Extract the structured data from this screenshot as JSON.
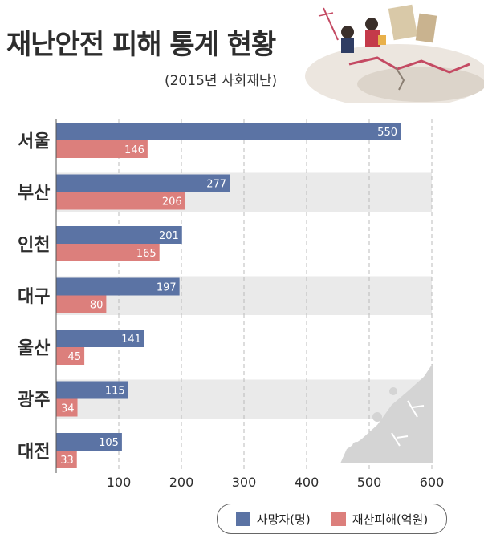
{
  "chart_data": {
    "type": "bar",
    "orientation": "horizontal",
    "title": "재난안전 피해 통계 현황",
    "subtitle": "(2015년 사회재난)",
    "categories": [
      "서울",
      "부산",
      "인천",
      "대구",
      "울산",
      "광주",
      "대전"
    ],
    "series": [
      {
        "name": "사망자(명)",
        "values": [
          550,
          277,
          201,
          197,
          141,
          115,
          105
        ],
        "color": "#5b73a4"
      },
      {
        "name": "재산피해(억원)",
        "values": [
          146,
          206,
          165,
          80,
          45,
          34,
          33
        ],
        "color": "#dc7f7c"
      }
    ],
    "xlim": [
      0,
      600
    ],
    "xticks": [
      100,
      200,
      300,
      400,
      500,
      600
    ],
    "grid": "vertical-dashed",
    "legend_position": "bottom-right"
  },
  "colors": {
    "band": "#eaeaea",
    "grid": "#bbbbbb",
    "text": "#2d2d2d"
  },
  "icons": {
    "illustration": "earthquake-disaster-illustration"
  }
}
